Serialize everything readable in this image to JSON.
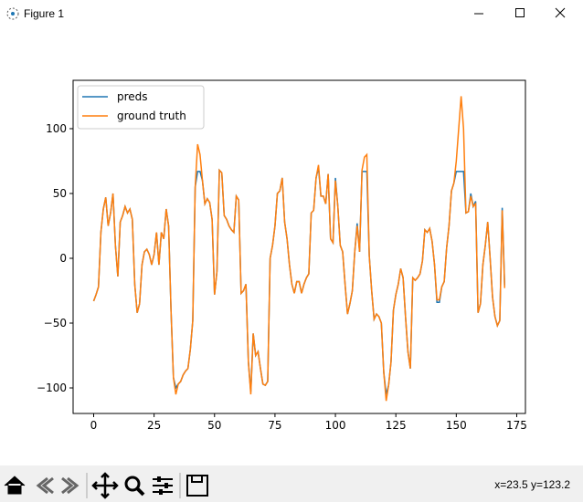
{
  "window": {
    "title": "Figure 1",
    "status": "x=23.5 y=123.2"
  },
  "chart_data": {
    "type": "line",
    "x": [
      0,
      1,
      2,
      3,
      4,
      5,
      6,
      7,
      8,
      9,
      10,
      11,
      12,
      13,
      14,
      15,
      16,
      17,
      18,
      19,
      20,
      21,
      22,
      23,
      24,
      25,
      26,
      27,
      28,
      29,
      30,
      31,
      32,
      33,
      34,
      35,
      36,
      37,
      38,
      39,
      40,
      41,
      42,
      43,
      44,
      45,
      46,
      47,
      48,
      49,
      50,
      51,
      52,
      53,
      54,
      55,
      56,
      57,
      58,
      59,
      60,
      61,
      62,
      63,
      64,
      65,
      66,
      67,
      68,
      69,
      70,
      71,
      72,
      73,
      74,
      75,
      76,
      77,
      78,
      79,
      80,
      81,
      82,
      83,
      84,
      85,
      86,
      87,
      88,
      89,
      90,
      91,
      92,
      93,
      94,
      95,
      96,
      97,
      98,
      99,
      100,
      101,
      102,
      103,
      104,
      105,
      106,
      107,
      108,
      109,
      110,
      111,
      112,
      113,
      114,
      115,
      116,
      117,
      118,
      119,
      120,
      121,
      122,
      123,
      124,
      125,
      126,
      127,
      128,
      129,
      130,
      131,
      132,
      133,
      134,
      135,
      136,
      137,
      138,
      139,
      140,
      141,
      142,
      143,
      144,
      145,
      146,
      147,
      148,
      149,
      150,
      151,
      152,
      153,
      154,
      155,
      156,
      157,
      158,
      159,
      160,
      161,
      162,
      163,
      164,
      165,
      166,
      167,
      168,
      169,
      170
    ],
    "series": [
      {
        "name": "preds",
        "color": "#1f77b4",
        "values": [
          -33,
          -28,
          -22,
          20,
          38,
          47,
          25,
          35,
          50,
          10,
          -14,
          28,
          33,
          40,
          35,
          38,
          30,
          -20,
          -42,
          -35,
          -5,
          5,
          7,
          3,
          -5,
          3,
          20,
          -5,
          20,
          15,
          38,
          25,
          -40,
          -92,
          -100,
          -97,
          -95,
          -90,
          -87,
          -85,
          -70,
          -48,
          55,
          67,
          67,
          60,
          42,
          46,
          43,
          30,
          -28,
          -10,
          68,
          66,
          33,
          30,
          25,
          22,
          20,
          48,
          45,
          -27,
          -25,
          -20,
          -80,
          -103,
          -58,
          -75,
          -72,
          -85,
          -97,
          -98,
          -95,
          0,
          10,
          25,
          50,
          52,
          62,
          28,
          15,
          -5,
          -20,
          -27,
          -18,
          -18,
          -27,
          -20,
          -15,
          -12,
          35,
          37,
          62,
          70,
          48,
          48,
          42,
          65,
          15,
          12,
          62,
          40,
          10,
          5,
          -20,
          -43,
          -35,
          -25,
          5,
          27,
          5,
          67,
          67,
          67,
          2,
          -25,
          -47,
          -43,
          -45,
          -50,
          -88,
          -105,
          -98,
          -80,
          -40,
          -28,
          -20,
          -8,
          -15,
          -45,
          -72,
          -85,
          -15,
          -17,
          -15,
          -12,
          -2,
          22,
          20,
          23,
          13,
          -5,
          -34,
          -34,
          -22,
          -18,
          8,
          25,
          52,
          58,
          67,
          67,
          67,
          67,
          35,
          36,
          50,
          40,
          44,
          -42,
          -35,
          -5,
          10,
          28,
          0,
          -30,
          -45,
          -52,
          -48,
          39,
          -21
        ]
      },
      {
        "name": "ground truth",
        "color": "#ff7f0e",
        "values": [
          -33,
          -28,
          -22,
          20,
          38,
          47,
          25,
          35,
          50,
          10,
          -14,
          28,
          33,
          40,
          35,
          38,
          30,
          -20,
          -42,
          -35,
          -5,
          5,
          7,
          3,
          -5,
          3,
          20,
          -5,
          20,
          15,
          38,
          25,
          -40,
          -92,
          -105,
          -97,
          -95,
          -90,
          -87,
          -85,
          -70,
          -48,
          55,
          88,
          80,
          60,
          42,
          46,
          43,
          30,
          -28,
          -10,
          68,
          66,
          33,
          30,
          25,
          22,
          20,
          48,
          45,
          -27,
          -25,
          -20,
          -80,
          -105,
          -58,
          -75,
          -72,
          -85,
          -97,
          -98,
          -95,
          0,
          10,
          25,
          50,
          52,
          62,
          28,
          15,
          -5,
          -20,
          -27,
          -18,
          -18,
          -27,
          -20,
          -15,
          -12,
          35,
          37,
          62,
          72,
          48,
          48,
          42,
          65,
          15,
          12,
          60,
          40,
          10,
          5,
          -20,
          -43,
          -35,
          -25,
          5,
          25,
          5,
          68,
          78,
          80,
          2,
          -25,
          -47,
          -43,
          -45,
          -50,
          -88,
          -110,
          -98,
          -80,
          -40,
          -28,
          -20,
          -8,
          -15,
          -45,
          -72,
          -85,
          -15,
          -17,
          -15,
          -12,
          -2,
          22,
          20,
          23,
          13,
          -5,
          -32,
          -32,
          -22,
          -18,
          8,
          25,
          52,
          58,
          75,
          100,
          125,
          100,
          35,
          36,
          48,
          40,
          42,
          -42,
          -35,
          -5,
          10,
          28,
          0,
          -30,
          -45,
          -52,
          -48,
          37,
          -23
        ]
      }
    ],
    "xlim": [
      -8.5,
      178.6
    ],
    "ylim": [
      -119.7,
      137.3
    ],
    "xticks": [
      0,
      25,
      50,
      75,
      100,
      125,
      150,
      175
    ],
    "yticks": [
      {
        "value": -100,
        "label": "−100"
      },
      {
        "value": -50,
        "label": "−50"
      },
      0,
      50,
      100
    ],
    "legend": "upper left"
  }
}
